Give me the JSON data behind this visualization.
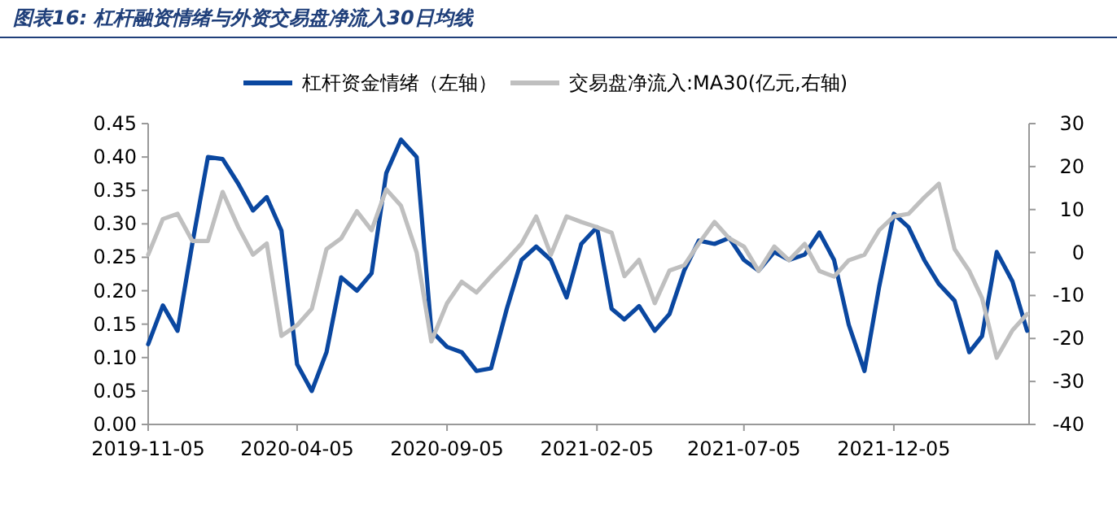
{
  "chart_data": {
    "type": "line",
    "title": "图表16: 杠杆融资情绪与外资交易盘净流入30日均线",
    "x": [
      "2019-11-05",
      "2019-11-20",
      "2019-12-05",
      "2019-12-20",
      "2020-01-05",
      "2020-01-20",
      "2020-02-05",
      "2020-02-20",
      "2020-03-05",
      "2020-03-20",
      "2020-04-05",
      "2020-04-20",
      "2020-05-05",
      "2020-05-20",
      "2020-06-05",
      "2020-06-20",
      "2020-07-05",
      "2020-07-20",
      "2020-08-05",
      "2020-08-20",
      "2020-09-05",
      "2020-09-20",
      "2020-10-05",
      "2020-10-20",
      "2020-11-05",
      "2020-11-20",
      "2020-12-05",
      "2020-12-20",
      "2021-01-05",
      "2021-01-20",
      "2021-02-05",
      "2021-02-20",
      "2021-03-05",
      "2021-03-20",
      "2021-04-05",
      "2021-04-20",
      "2021-05-05",
      "2021-05-20",
      "2021-06-05",
      "2021-06-20",
      "2021-07-05",
      "2021-07-20",
      "2021-08-05",
      "2021-08-20",
      "2021-09-05",
      "2021-09-20",
      "2021-10-05",
      "2021-10-20",
      "2021-11-05",
      "2021-11-20",
      "2021-12-05",
      "2021-12-20",
      "2022-01-05",
      "2022-01-20",
      "2022-02-05",
      "2022-02-20",
      "2022-03-05",
      "2022-03-20",
      "2022-04-05",
      "2022-04-20"
    ],
    "series": [
      {
        "name": "杠杆资金情绪（左轴）",
        "color": "#0a47a0",
        "values": [
          0.12,
          0.178,
          0.14,
          0.27,
          0.4,
          0.397,
          0.36,
          0.32,
          0.34,
          0.29,
          0.09,
          0.05,
          0.108,
          0.22,
          0.2,
          0.226,
          0.376,
          0.426,
          0.4,
          0.14,
          0.116,
          0.108,
          0.08,
          0.084,
          0.173,
          0.246,
          0.266,
          0.246,
          0.19,
          0.27,
          0.295,
          0.173,
          0.157,
          0.177,
          0.14,
          0.165,
          0.23,
          0.275,
          0.27,
          0.279,
          0.246,
          0.23,
          0.258,
          0.246,
          0.254,
          0.287,
          0.246,
          0.149,
          0.08,
          0.206,
          0.315,
          0.295,
          0.246,
          0.21,
          0.185,
          0.108,
          0.132,
          0.258,
          0.214,
          0.14
        ]
      },
      {
        "name": "交易盘净流入:MA30(亿元,右轴)",
        "color": "#bfbfbf",
        "axis": "y2",
        "values": [
          -0.5,
          7.8,
          9.0,
          2.7,
          2.7,
          14.1,
          5.9,
          -0.5,
          2.1,
          -19.4,
          -16.9,
          -13.1,
          0.8,
          3.3,
          9.6,
          5.2,
          14.7,
          10.9,
          0,
          -20.7,
          -11.8,
          -6.8,
          -9.3,
          -5.5,
          -1.7,
          2.1,
          8.4,
          -0.5,
          8.4,
          7.1,
          5.9,
          4.6,
          -5.5,
          -1.7,
          -11.8,
          -4.2,
          -3.0,
          2.1,
          7.1,
          3.3,
          1.4,
          -4.3,
          1.4,
          -1.8,
          2.0,
          -4.3,
          -5.6,
          -1.8,
          -0.5,
          5.2,
          8.4,
          9.0,
          12.8,
          16.0,
          0.8,
          -4.3,
          -10.6,
          -24.5,
          -18.1,
          -14.3
        ]
      }
    ],
    "xlim": [
      "2019-11-05",
      "2022-04-22"
    ],
    "xticks": [
      "2019-11-05",
      "2020-04-05",
      "2020-09-05",
      "2021-02-05",
      "2021-07-05",
      "2021-12-05"
    ],
    "ylim": [
      0,
      0.45
    ],
    "yticks": [
      {
        "value": 0,
        "label": "0.00"
      },
      {
        "value": 0.05,
        "label": "0.05"
      },
      {
        "value": 0.1,
        "label": "0.10"
      },
      {
        "value": 0.15,
        "label": "0.15"
      },
      {
        "value": 0.2,
        "label": "0.20"
      },
      {
        "value": 0.25,
        "label": "0.25"
      },
      {
        "value": 0.3,
        "label": "0.30"
      },
      {
        "value": 0.35,
        "label": "0.35"
      },
      {
        "value": 0.4,
        "label": "0.40"
      },
      {
        "value": 0.45,
        "label": "0.45"
      }
    ],
    "y2lim": [
      -40,
      30
    ],
    "y2ticks": [
      -40,
      -30,
      -20,
      -10,
      0,
      10,
      20,
      30
    ],
    "legend": "top"
  }
}
